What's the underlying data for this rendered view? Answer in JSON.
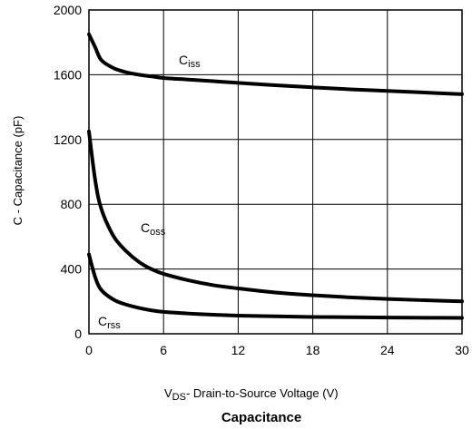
{
  "chart_data": {
    "type": "line",
    "title": "Capacitance",
    "xlabel": {
      "main": "V",
      "sub": "DS",
      "rest": "- Drain-to-Source Voltage (V)"
    },
    "ylabel": "C - Capacitance (pF)",
    "xlim": [
      0,
      30
    ],
    "ylim": [
      0,
      2000
    ],
    "xticks": [
      0,
      6,
      12,
      18,
      24,
      30
    ],
    "yticks": [
      0,
      400,
      800,
      1200,
      1600,
      2000
    ],
    "grid": true,
    "series": [
      {
        "name": {
          "main": "C",
          "sub": "iss"
        },
        "x": [
          0,
          0.5,
          1,
          2,
          3,
          4,
          5,
          6,
          8,
          10,
          12,
          15,
          18,
          21,
          24,
          27,
          30
        ],
        "y": [
          1850,
          1770,
          1690,
          1640,
          1615,
          1600,
          1590,
          1580,
          1570,
          1560,
          1550,
          1535,
          1522,
          1510,
          1500,
          1490,
          1480
        ]
      },
      {
        "name": {
          "main": "C",
          "sub": "oss"
        },
        "x": [
          0,
          0.5,
          1,
          2,
          3,
          4,
          5,
          6,
          8,
          10,
          12,
          15,
          18,
          21,
          24,
          27,
          30
        ],
        "y": [
          1250,
          950,
          770,
          600,
          510,
          445,
          400,
          370,
          330,
          300,
          280,
          255,
          238,
          225,
          215,
          207,
          200
        ]
      },
      {
        "name": {
          "main": "C",
          "sub": "rss"
        },
        "x": [
          0,
          0.5,
          1,
          2,
          3,
          4,
          5,
          6,
          8,
          10,
          12,
          15,
          18,
          21,
          24,
          27,
          30
        ],
        "y": [
          490,
          350,
          270,
          210,
          180,
          160,
          145,
          135,
          125,
          118,
          112,
          108,
          104,
          102,
          100,
          99,
          98
        ]
      }
    ]
  }
}
